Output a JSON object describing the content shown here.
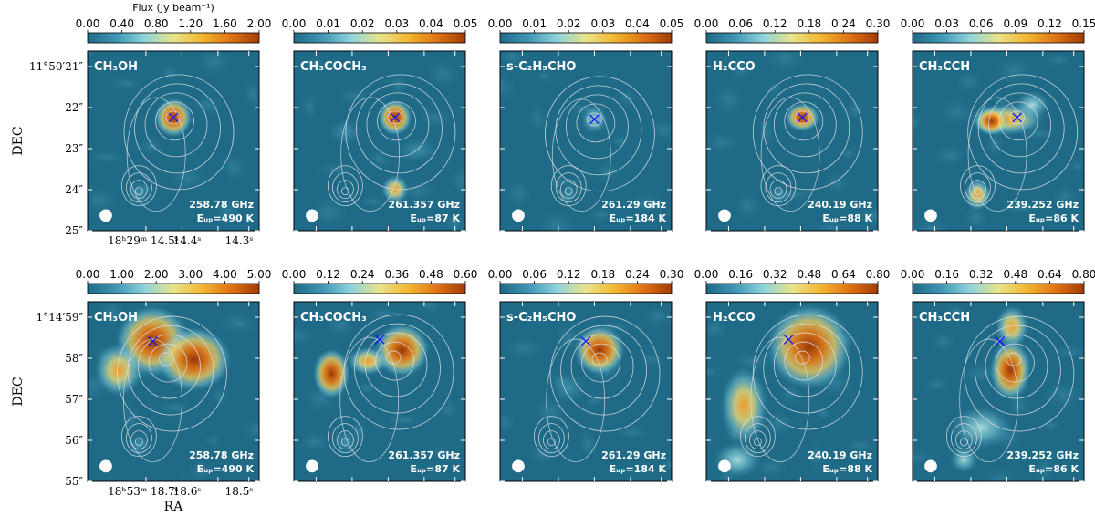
{
  "colorbar_label": "Flux (Jy beam⁻¹)",
  "ylabel": "DEC",
  "xlabel": "RA",
  "beam_symbol": "●",
  "colors": {
    "map_background": "#1e6a87",
    "contour": "#d8dde2",
    "marker": "#1a1aff",
    "label_text": "#ffffff"
  },
  "rows": [
    {
      "ytick_labels": [
        "-11°50′21″",
        "22″",
        "23″",
        "24″",
        "25″"
      ],
      "xtick_labels": [
        "18ʰ29ᵐ 14.5ˢ",
        "14.4ˢ",
        "14.3ˢ"
      ],
      "panels": [
        {
          "molecule": "CH₃OH",
          "freq": "258.78 GHz",
          "eup": "Eᵤₚ=490 K",
          "cbar_ticks": [
            "0.00",
            "0.40",
            "0.80",
            "1.20",
            "1.60",
            "2.00"
          ]
        },
        {
          "molecule": "CH₃COCH₃",
          "freq": "261.357 GHz",
          "eup": "Eᵤₚ=87 K",
          "cbar_ticks": [
            "0.00",
            "0.01",
            "0.02",
            "0.03",
            "0.04",
            "0.05"
          ]
        },
        {
          "molecule": "s-C₂H₅CHO",
          "freq": "261.29 GHz",
          "eup": "Eᵤₚ=184 K",
          "cbar_ticks": [
            "0.00",
            "0.01",
            "0.02",
            "0.03",
            "0.04",
            "0.05"
          ]
        },
        {
          "molecule": "H₂CCO",
          "freq": "240.19 GHz",
          "eup": "Eᵤₚ=88 K",
          "cbar_ticks": [
            "0.00",
            "0.06",
            "0.12",
            "0.18",
            "0.24",
            "0.30"
          ]
        },
        {
          "molecule": "CH₃CCH",
          "freq": "239.252 GHz",
          "eup": "Eᵤₚ=86 K",
          "cbar_ticks": [
            "0.00",
            "0.03",
            "0.06",
            "0.09",
            "0.12",
            "0.15"
          ]
        }
      ]
    },
    {
      "ytick_labels": [
        "1°14′59″",
        "58″",
        "57″",
        "56″",
        "55″"
      ],
      "xtick_labels": [
        "18ʰ53ᵐ 18.7ˢ",
        "18.6ˢ",
        "18.5ˢ"
      ],
      "panels": [
        {
          "molecule": "CH₃OH",
          "freq": "258.78 GHz",
          "eup": "Eᵤₚ=490 K",
          "cbar_ticks": [
            "0.00",
            "1.00",
            "2.00",
            "3.00",
            "4.00",
            "5.00"
          ]
        },
        {
          "molecule": "CH₃COCH₃",
          "freq": "261.357 GHz",
          "eup": "Eᵤₚ=87 K",
          "cbar_ticks": [
            "0.00",
            "0.12",
            "0.24",
            "0.36",
            "0.48",
            "0.60"
          ]
        },
        {
          "molecule": "s-C₂H₅CHO",
          "freq": "261.29 GHz",
          "eup": "Eᵤₚ=184 K",
          "cbar_ticks": [
            "0.00",
            "0.06",
            "0.12",
            "0.18",
            "0.24",
            "0.30"
          ]
        },
        {
          "molecule": "H₂CCO",
          "freq": "240.19 GHz",
          "eup": "Eᵤₚ=88 K",
          "cbar_ticks": [
            "0.00",
            "0.16",
            "0.32",
            "0.48",
            "0.64",
            "0.80"
          ]
        },
        {
          "molecule": "CH₃CCH",
          "freq": "239.252 GHz",
          "eup": "Eᵤₚ=86 K",
          "cbar_ticks": [
            "0.00",
            "0.16",
            "0.32",
            "0.48",
            "0.64",
            "0.80"
          ]
        }
      ]
    }
  ],
  "chart_data": {
    "type": "heatmap",
    "colormap": [
      "#1e6a87",
      "#3e96b4",
      "#8ed3dc",
      "#e8e48a",
      "#f3b731",
      "#df7415",
      "#a23c06"
    ],
    "panels": [
      {
        "row": 0,
        "col": 0,
        "vmin": 0,
        "vmax": 2.0,
        "peak": 1.95
      },
      {
        "row": 0,
        "col": 1,
        "vmin": 0,
        "vmax": 0.05,
        "peak": 0.05
      },
      {
        "row": 0,
        "col": 2,
        "vmin": 0,
        "vmax": 0.05,
        "peak": 0.02
      },
      {
        "row": 0,
        "col": 3,
        "vmin": 0,
        "vmax": 0.3,
        "peak": 0.3
      },
      {
        "row": 0,
        "col": 4,
        "vmin": 0,
        "vmax": 0.15,
        "peak": 0.15
      },
      {
        "row": 1,
        "col": 0,
        "vmin": 0,
        "vmax": 5.0,
        "peak": 5.0
      },
      {
        "row": 1,
        "col": 1,
        "vmin": 0,
        "vmax": 0.6,
        "peak": 0.6
      },
      {
        "row": 1,
        "col": 2,
        "vmin": 0,
        "vmax": 0.3,
        "peak": 0.3
      },
      {
        "row": 1,
        "col": 3,
        "vmin": 0,
        "vmax": 0.8,
        "peak": 0.8
      },
      {
        "row": 1,
        "col": 4,
        "vmin": 0,
        "vmax": 0.8,
        "peak": 0.8
      }
    ]
  }
}
